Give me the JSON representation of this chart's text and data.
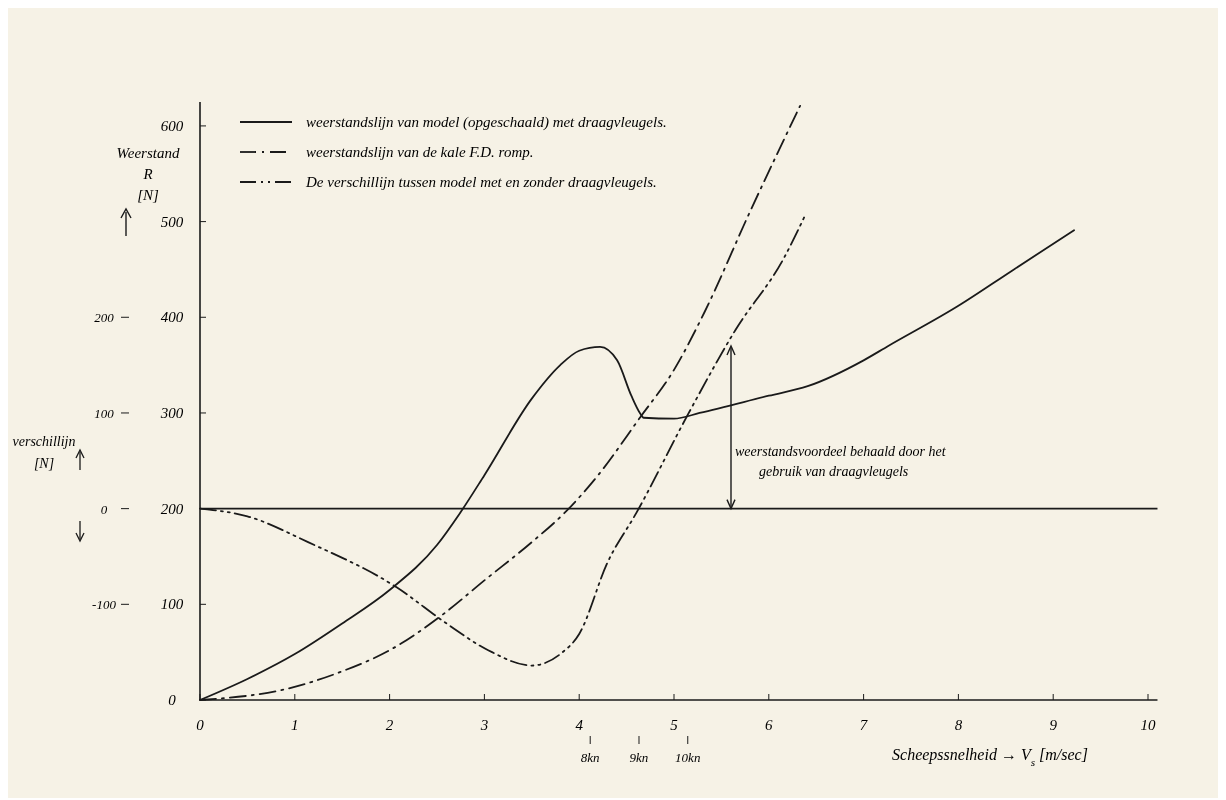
{
  "chart_data": {
    "type": "line",
    "xlabel": "Scheepssnelheid → V$_{s}$ [m/sec]",
    "ylabel": "Weerstand R [N]",
    "y2label": "verschillijn [N]",
    "xlim": [
      0,
      10.1
    ],
    "xticks": [
      0,
      1,
      2,
      3,
      4,
      5,
      6,
      7,
      8,
      9,
      10
    ],
    "x2lim": [
      0,
      19.63
    ],
    "x2ticks": [
      {
        "value": 8,
        "label": "8kn"
      },
      {
        "value": 9,
        "label": "9kn"
      },
      {
        "value": 10,
        "label": "10kn"
      }
    ],
    "ylim": [
      0,
      625
    ],
    "yticks": [
      0,
      100,
      200,
      300,
      400,
      500,
      600
    ],
    "y2lim": [
      -200,
      425
    ],
    "y2ticks": [
      -100,
      0,
      100,
      200
    ],
    "grid": false,
    "legend": "top left",
    "marker": "none",
    "ref_lines": [
      {
        "axis": "y2",
        "value": 0,
        "color": "#1a1a1a"
      }
    ],
    "annotations": [
      "weerstandsvoordeel behaald door het gebruik van draagvleugels"
    ],
    "series": [
      {
        "name": "weerstandslijn van model (opgeschaald) met draagvleugels.",
        "color": "#1a1a1a",
        "line_style": "solid",
        "x": [
          0,
          0.5,
          1,
          1.5,
          2,
          2.5,
          2.74,
          3,
          3.5,
          3.8,
          4.0,
          4.22,
          4.4,
          4.55,
          4.64,
          4.68,
          5.0,
          5.27,
          6,
          6.41,
          7,
          7.26,
          8,
          8.57,
          9.22
        ],
        "values": [
          0,
          22,
          48,
          80,
          115,
          162,
          195,
          235,
          315,
          350,
          365,
          369,
          355,
          318,
          300,
          295,
          294,
          300,
          318,
          328,
          355,
          370,
          412,
          449,
          491
        ]
      },
      {
        "name": "weerstandslijn van de kale F.D. romp.",
        "color": "#1a1a1a",
        "line_style": "dashdot",
        "x": [
          0,
          0.93,
          1.5,
          2,
          2.57,
          3,
          3.5,
          3.84,
          4.2,
          4.64,
          5,
          5.32,
          5.8,
          6.33
        ],
        "values": [
          0,
          12,
          30,
          52,
          90,
          125,
          165,
          195,
          235,
          295,
          345,
          405,
          510,
          621
        ]
      },
      {
        "name": "De verschillijn tussen model met en zonder draagvleugels.",
        "color": "#1a1a1a",
        "line_style": "dashdotdot",
        "axis": "y2",
        "x": [
          0,
          0.5,
          1.14,
          2.07,
          2.6,
          3.04,
          3.5,
          3.8,
          4.0,
          4.3,
          4.6,
          5.15,
          5.65,
          6.16,
          6.39
        ],
        "values": [
          0,
          -8,
          -35,
          -82,
          -120,
          -148,
          -164,
          -152,
          -131,
          -56,
          -5,
          99,
          187,
          262,
          308
        ]
      }
    ]
  }
}
